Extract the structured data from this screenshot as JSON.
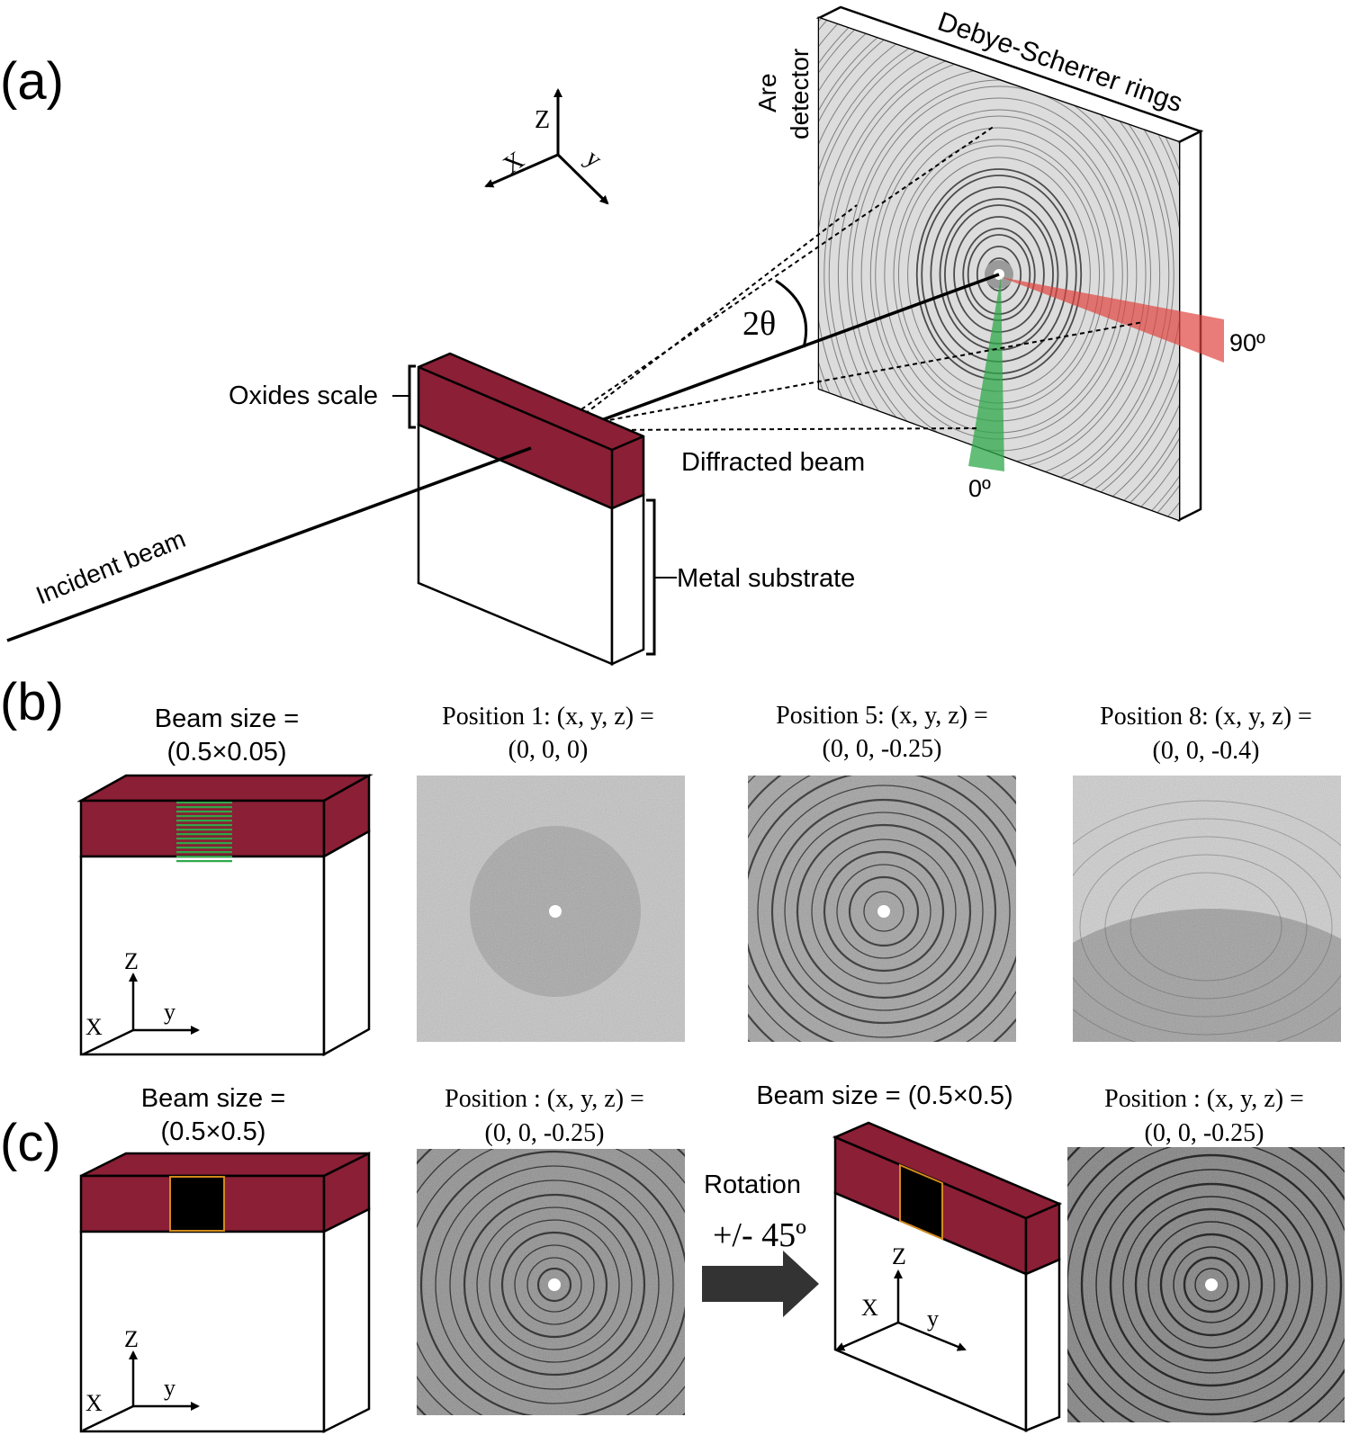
{
  "colors": {
    "oxide": "#8a1f35",
    "green": "#2fa84a",
    "red": "#e0453e",
    "arrow_dark": "#333333",
    "beam_box_edge": "#d08a1c"
  },
  "panel_a": {
    "label": "(a)",
    "axes": {
      "z": "Z",
      "x": "X",
      "y": "y"
    },
    "detector_label_line1": "Are",
    "detector_label_line2": "detector",
    "rings_label": "Debye-Scherrer rings",
    "angle_label": "2θ",
    "azimuth_90": "90º",
    "azimuth_0": "0º",
    "oxides_label": "Oxides scale",
    "diffracted_label": "Diffracted beam",
    "metal_label": "Metal substrate",
    "incident_label": "Incident beam"
  },
  "panel_b": {
    "label": "(b)",
    "beam_title_line1": "Beam size =",
    "beam_title_line2": "(0.5×0.05)",
    "axes": {
      "z": "Z",
      "x": "X",
      "y": "y"
    },
    "patterns": [
      {
        "line1": "Position 1: (x, y, z) =",
        "line2": "(0, 0, 0)"
      },
      {
        "line1": "Position 5: (x, y, z) =",
        "line2": "(0, 0, -0.25)"
      },
      {
        "line1": "Position 8: (x, y, z) =",
        "line2": "(0, 0, -0.4)"
      }
    ]
  },
  "panel_c": {
    "label": "(c)",
    "beam_title_line1": "Beam size =",
    "beam_title_line2": "(0.5×0.5)",
    "axes": {
      "z": "Z",
      "x": "X",
      "y": "y"
    },
    "pattern1_line1": "Position : (x, y, z) =",
    "pattern1_line2": "(0, 0, -0.25)",
    "rotation_label": "Rotation",
    "rotation_angle": "+/- 45º",
    "beam_title_right": "Beam size = (0.5×0.5)",
    "axes_right": {
      "z": "Z",
      "x": "X",
      "y": "y"
    },
    "pattern2_line1": "Position : (x, y, z) =",
    "pattern2_line2": "(0, 0, -0.25)"
  }
}
